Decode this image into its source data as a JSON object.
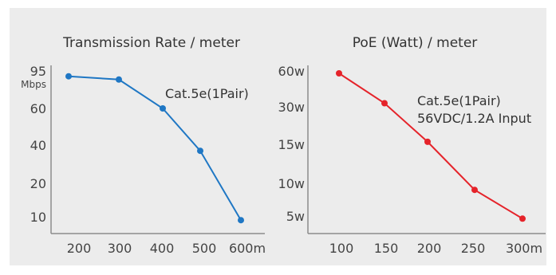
{
  "chart_data": [
    {
      "type": "line",
      "title": "Transmission Rate / meter",
      "annotation": [
        "Cat.5e(1Pair)"
      ],
      "color": "#1f77c4",
      "x_ticks": [
        "200",
        "300",
        "400",
        "500",
        "600m"
      ],
      "y_ticks": [
        "95",
        "60",
        "40",
        "20",
        "10"
      ],
      "y_unit": "Mbps",
      "x": [
        200,
        300,
        400,
        500,
        600
      ],
      "values": [
        90,
        87,
        60,
        37,
        9
      ],
      "value_unit": "Mbps"
    },
    {
      "type": "line",
      "title": "PoE (Watt) / meter",
      "annotation": [
        "Cat.5e(1Pair)",
        "56VDC/1.2A Input"
      ],
      "color": "#e5232a",
      "x_ticks": [
        "100",
        "150",
        "200",
        "250",
        "300m"
      ],
      "y_ticks": [
        "60w",
        "30w",
        "15w",
        "10w",
        "5w"
      ],
      "x": [
        100,
        150,
        200,
        250,
        300
      ],
      "values": [
        58,
        33,
        16,
        9,
        4.6
      ],
      "value_unit": "W"
    }
  ]
}
